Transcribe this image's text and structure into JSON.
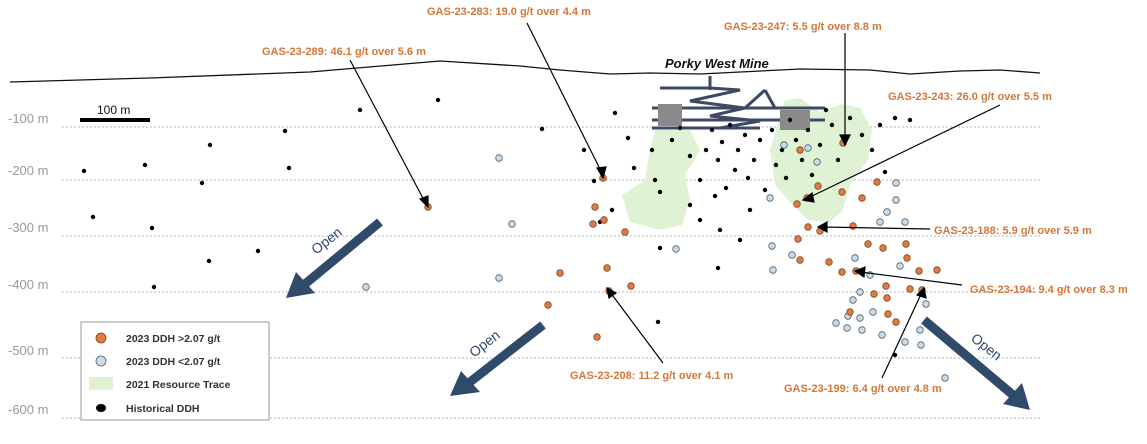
{
  "title": "Porky West Mine",
  "scale_bar": "100 m",
  "colors": {
    "ddh_high": "#e07a3f",
    "ddh_low": "#c8dbe8",
    "resource": "#dff2d3",
    "historical": "#000000",
    "callout": "#d4763a",
    "arrow_open": "#2f4a6a",
    "mine_structure": "#3c4a63"
  },
  "depth_labels": [
    "-100 m",
    "-200 m",
    "-300 m",
    "-400 m",
    "-500 m",
    "-600 m"
  ],
  "callouts": [
    {
      "hole": "GAS-23-283",
      "grade": "19.0 g/t over 4.4 m"
    },
    {
      "hole": "GAS-23-247",
      "grade": "5.5 g/t over 8.8 m"
    },
    {
      "hole": "GAS-23-289",
      "grade": "46.1 g/t over 5.6 m"
    },
    {
      "hole": "GAS-23-243",
      "grade": "26.0 g/t over 5.5 m"
    },
    {
      "hole": "GAS-23-188",
      "grade": "5.9 g/t over 5.9 m"
    },
    {
      "hole": "GAS-23-194",
      "grade": "9.4 g/t over 8.3 m"
    },
    {
      "hole": "GAS-23-208",
      "grade": "11.2 g/t over 4.1 m"
    },
    {
      "hole": "GAS-23-199",
      "grade": "6.4 g/t over 4.8 m"
    }
  ],
  "open_labels": [
    "Open",
    "Open",
    "Open"
  ],
  "legend": [
    {
      "label": "2023 DDH >2.07 g/t",
      "symbol": "ddh-high"
    },
    {
      "label": "2023 DDH <2.07 g/t",
      "symbol": "ddh-low"
    },
    {
      "label": "2021 Resource Trace",
      "symbol": "resource"
    },
    {
      "label": "Historical DDH",
      "symbol": "historical"
    }
  ]
}
